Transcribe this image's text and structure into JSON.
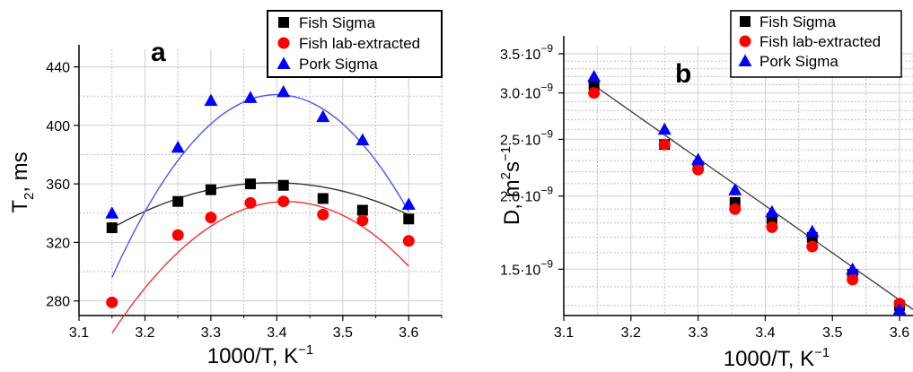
{
  "chart_data": [
    {
      "type": "scatter",
      "panel_label": "a",
      "xlabel": "1000/T,  K",
      "xlabel_sup": "−1",
      "ylabel_main": "T",
      "ylabel_sub": "2",
      "ylabel_unit": ", ms",
      "xlim": [
        3.1,
        3.65
      ],
      "ylim": [
        270,
        452
      ],
      "x_ticks": [
        "3.1",
        "3.2",
        "3.3",
        "3.4",
        "3.5",
        "3.6"
      ],
      "y_ticks": [
        "280",
        "320",
        "360",
        "400",
        "440"
      ],
      "legend_position": "top-right",
      "series": [
        {
          "name": "Fish Sigma",
          "marker": "square",
          "color": "#000000",
          "fit_color": "#333333",
          "x": [
            3.15,
            3.25,
            3.3,
            3.36,
            3.41,
            3.47,
            3.53,
            3.6
          ],
          "y": [
            330,
            348,
            356,
            360,
            359,
            350,
            342,
            336
          ],
          "fit": [
            -520,
            3530,
            -5630
          ]
        },
        {
          "name": "Fish lab-extracted",
          "marker": "circle",
          "color": "#ff0000",
          "fit_color": "#ee3333",
          "x": [
            3.15,
            3.25,
            3.3,
            3.36,
            3.41,
            3.47,
            3.53,
            3.6
          ],
          "y": [
            279,
            325,
            337,
            347,
            348,
            339,
            335,
            321
          ],
          "fit": [
            -1286,
            8782,
            -14645
          ]
        },
        {
          "name": "Pork Sigma",
          "marker": "triangle",
          "color": "#0000ff",
          "fit_color": "#4a55ee",
          "x": [
            3.15,
            3.25,
            3.3,
            3.36,
            3.41,
            3.47,
            3.53,
            3.6
          ],
          "y": [
            340,
            385,
            417,
            419,
            423,
            406,
            390,
            346
          ],
          "fit": [
            -2000,
            13600,
            -22699
          ]
        }
      ]
    },
    {
      "type": "scatter",
      "panel_label": "b",
      "xlabel": "1000/T,  K",
      "xlabel_sup": "−1",
      "ylabel_main": "D, m",
      "ylabel_sup1": "2",
      "ylabel_mid": "s",
      "ylabel_sup2": "−1",
      "y_scale": "log",
      "xlim": [
        3.1,
        3.62
      ],
      "ylim": [
        1.25e-09,
        3.6e-09
      ],
      "x_ticks": [
        "3.1",
        "3.2",
        "3.3",
        "3.4",
        "3.5",
        "3.6"
      ],
      "y_ticks": [
        {
          "value": 1.5e-09,
          "mant": "1.5·10",
          "exp": "−9"
        },
        {
          "value": 2e-09,
          "mant": "2.0·10",
          "exp": "−9"
        },
        {
          "value": 2.5e-09,
          "mant": "2.5·10",
          "exp": "−9"
        },
        {
          "value": 3e-09,
          "mant": "3.0·10",
          "exp": "−9"
        },
        {
          "value": 3.5e-09,
          "mant": "3.5·10",
          "exp": "−9"
        }
      ],
      "legend_position": "top-right",
      "fit_line": {
        "x": [
          3.14,
          3.62
        ],
        "y": [
          3.12e-09,
          1.28e-09
        ],
        "color": "#444444"
      },
      "series": [
        {
          "name": "Fish Sigma",
          "marker": "square",
          "color": "#000000",
          "x": [
            3.145,
            3.25,
            3.3,
            3.355,
            3.41,
            3.47,
            3.53,
            3.6
          ],
          "y": [
            3.1e-09,
            2.45e-09,
            2.25e-09,
            1.95e-09,
            1.83e-09,
            1.7e-09,
            1.47e-09,
            1.3e-09
          ]
        },
        {
          "name": "Fish lab-extracted",
          "marker": "circle",
          "color": "#ff0000",
          "x": [
            3.145,
            3.25,
            3.3,
            3.355,
            3.41,
            3.47,
            3.53,
            3.6
          ],
          "y": [
            3e-09,
            2.45e-09,
            2.22e-09,
            1.9e-09,
            1.77e-09,
            1.64e-09,
            1.44e-09,
            1.31e-09
          ]
        },
        {
          "name": "Pork Sigma",
          "marker": "triangle",
          "color": "#0000ff",
          "x": [
            3.145,
            3.25,
            3.3,
            3.355,
            3.41,
            3.47,
            3.53,
            3.6
          ],
          "y": [
            3.2e-09,
            2.6e-09,
            2.31e-09,
            2.05e-09,
            1.88e-09,
            1.74e-09,
            1.5e-09,
            1.28e-09
          ]
        }
      ]
    }
  ]
}
